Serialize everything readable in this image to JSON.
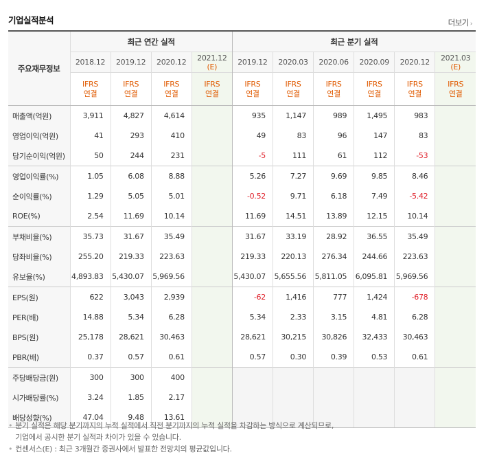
{
  "header": {
    "title": "기업실적분석",
    "more_label": "더보기",
    "more_icon": "chevron-right-icon"
  },
  "row_header_label": "주요재무정보",
  "groups": {
    "annual": "최근 연간 실적",
    "quarter": "최근 분기 실적"
  },
  "columns": [
    {
      "period": "2018.12",
      "std": "IFRS",
      "basis": "연결",
      "estimate": false
    },
    {
      "period": "2019.12",
      "std": "IFRS",
      "basis": "연결",
      "estimate": false
    },
    {
      "period": "2020.12",
      "std": "IFRS",
      "basis": "연결",
      "estimate": false
    },
    {
      "period": "2021.12",
      "std": "IFRS",
      "basis": "연결",
      "estimate": true,
      "tag": "(E)"
    },
    {
      "period": "2019.12",
      "std": "IFRS",
      "basis": "연결",
      "estimate": false
    },
    {
      "period": "2020.03",
      "std": "IFRS",
      "basis": "연결",
      "estimate": false
    },
    {
      "period": "2020.06",
      "std": "IFRS",
      "basis": "연결",
      "estimate": false
    },
    {
      "period": "2020.09",
      "std": "IFRS",
      "basis": "연결",
      "estimate": false
    },
    {
      "period": "2020.12",
      "std": "IFRS",
      "basis": "연결",
      "estimate": false
    },
    {
      "period": "2021.03",
      "std": "IFRS",
      "basis": "연결",
      "estimate": true,
      "tag": "(E)"
    }
  ],
  "rows": [
    {
      "label": "매출액(억원)",
      "values": [
        "3,911",
        "4,827",
        "4,614",
        "",
        "935",
        "1,147",
        "989",
        "1,495",
        "983",
        ""
      ]
    },
    {
      "label": "영업이익(억원)",
      "values": [
        "41",
        "293",
        "410",
        "",
        "49",
        "83",
        "96",
        "147",
        "83",
        ""
      ]
    },
    {
      "label": "당기순이익(억원)",
      "values": [
        "50",
        "244",
        "231",
        "",
        "-5",
        "111",
        "61",
        "112",
        "-53",
        ""
      ]
    },
    {
      "label": "영업이익률(%)",
      "values": [
        "1.05",
        "6.08",
        "8.88",
        "",
        "5.26",
        "7.27",
        "9.69",
        "9.85",
        "8.46",
        ""
      ]
    },
    {
      "label": "순이익률(%)",
      "values": [
        "1.29",
        "5.05",
        "5.01",
        "",
        "-0.52",
        "9.71",
        "6.18",
        "7.49",
        "-5.42",
        ""
      ]
    },
    {
      "label": "ROE(%)",
      "values": [
        "2.54",
        "11.69",
        "10.14",
        "",
        "11.69",
        "14.51",
        "13.89",
        "12.15",
        "10.14",
        ""
      ]
    },
    {
      "label": "부채비율(%)",
      "values": [
        "35.73",
        "31.67",
        "35.49",
        "",
        "31.67",
        "33.19",
        "28.92",
        "36.55",
        "35.49",
        ""
      ]
    },
    {
      "label": "당좌비율(%)",
      "values": [
        "255.20",
        "219.33",
        "223.63",
        "",
        "219.33",
        "220.13",
        "276.34",
        "244.66",
        "223.63",
        ""
      ]
    },
    {
      "label": "유보율(%)",
      "values": [
        "4,893.83",
        "5,430.07",
        "5,969.56",
        "",
        "5,430.07",
        "5,655.56",
        "5,811.05",
        "6,095.81",
        "5,969.56",
        ""
      ]
    },
    {
      "label": "EPS(원)",
      "values": [
        "622",
        "3,043",
        "2,939",
        "",
        "-62",
        "1,416",
        "777",
        "1,424",
        "-678",
        ""
      ]
    },
    {
      "label": "PER(배)",
      "values": [
        "14.88",
        "5.34",
        "6.28",
        "",
        "5.34",
        "2.33",
        "3.15",
        "4.81",
        "6.28",
        ""
      ]
    },
    {
      "label": "BPS(원)",
      "values": [
        "25,178",
        "28,621",
        "30,463",
        "",
        "28,621",
        "30,215",
        "30,826",
        "32,433",
        "30,463",
        ""
      ]
    },
    {
      "label": "PBR(배)",
      "values": [
        "0.37",
        "0.57",
        "0.61",
        "",
        "0.57",
        "0.30",
        "0.39",
        "0.53",
        "0.61",
        ""
      ]
    },
    {
      "label": "주당배당금(원)",
      "values": [
        "300",
        "300",
        "400",
        "",
        "",
        "",
        "",
        "",
        "",
        ""
      ]
    },
    {
      "label": "시가배당률(%)",
      "values": [
        "3.24",
        "1.85",
        "2.17",
        "",
        "",
        "",
        "",
        "",
        "",
        ""
      ]
    },
    {
      "label": "배당성향(%)",
      "values": [
        "47.04",
        "9.48",
        "13.61",
        "",
        "",
        "",
        "",
        "",
        "",
        ""
      ]
    }
  ],
  "group_starts": [
    0,
    3,
    6,
    9,
    13
  ],
  "colors": {
    "negative": "#e0202a",
    "ifrs": "#e05a00",
    "estimate_bg": "#f2f7ee",
    "empty_bg": "#f5f5f5"
  },
  "notes": [
    "분기 실적은 해당 분기까지의 누적 실적에서 직전 분기까지의 누적 실적을 차감하는 방식으로 계산되므로,",
    "기업에서 공시한 분기 실적과 차이가 있을 수 있습니다.",
    "컨센서스(E) : 최근 3개월간 증권사에서 발표한 전망치의 평균값입니다."
  ]
}
